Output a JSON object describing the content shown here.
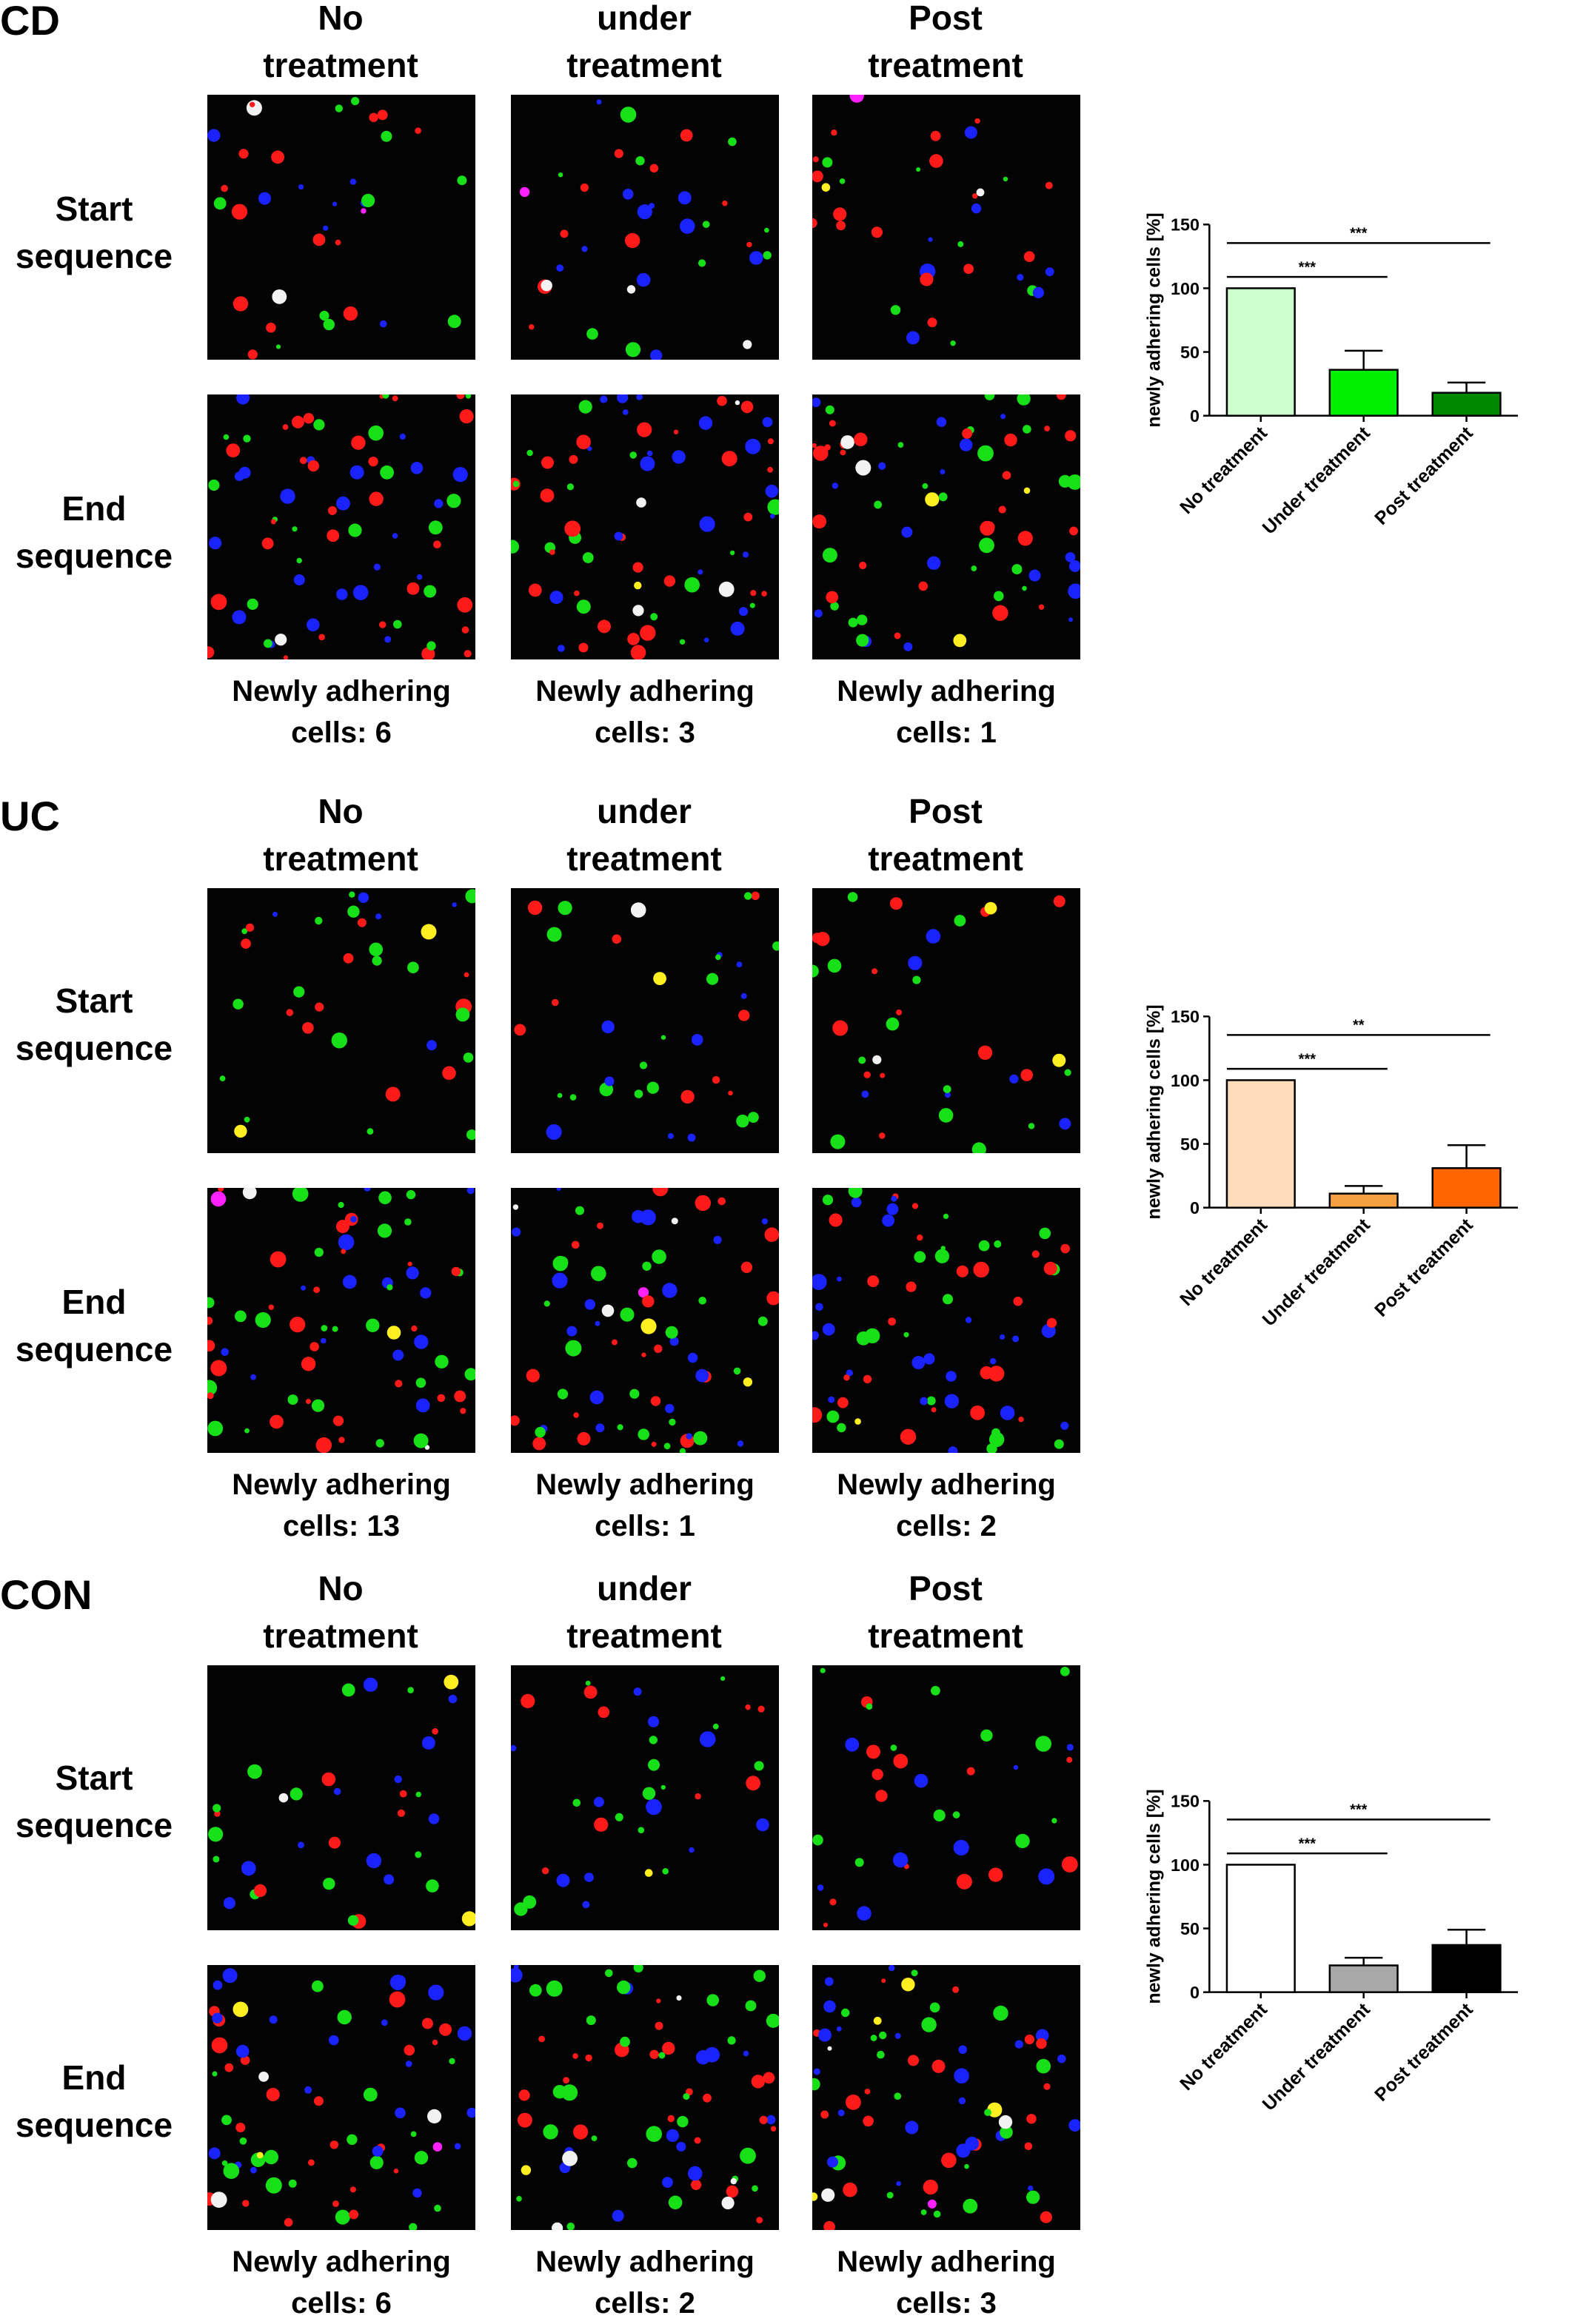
{
  "groups": [
    {
      "label": "CD",
      "columns": [
        "No\ntreatment",
        "under\ntreatment",
        "Post\ntreatment"
      ],
      "rows": [
        "Start\nsequence",
        "End\nsequence"
      ],
      "captions": [
        "Newly adhering\ncells: 6",
        "Newly adhering\ncells: 3",
        "Newly adhering\ncells: 1"
      ]
    },
    {
      "label": "UC",
      "columns": [
        "No\ntreatment",
        "under\ntreatment",
        "Post\ntreatment"
      ],
      "rows": [
        "Start\nsequence",
        "End\nsequence"
      ],
      "captions": [
        "Newly adhering\ncells: 13",
        "Newly adhering\ncells: 1",
        "Newly adhering\ncells: 2"
      ]
    },
    {
      "label": "CON",
      "columns": [
        "No\ntreatment",
        "under\ntreatment",
        "Post\ntreatment"
      ],
      "rows": [
        "Start\nsequence",
        "End\nsequence"
      ],
      "captions": [
        "Newly adhering\ncells: 6",
        "Newly adhering\ncells: 2",
        "Newly adhering\ncells: 3"
      ]
    }
  ],
  "chart_data": [
    {
      "type": "bar",
      "ylabel": "newly adhering cells [%]",
      "ylim": [
        0,
        150
      ],
      "yticks": [
        "0",
        "50",
        "100",
        "150"
      ],
      "categories": [
        "No treatment",
        "Under treatment",
        "Post treatment"
      ],
      "values": [
        100,
        36,
        18
      ],
      "errors": [
        0,
        15,
        8
      ],
      "colors": [
        "#ccffcc",
        "#00ee00",
        "#008800"
      ],
      "significance": [
        {
          "from": 0,
          "to": 1,
          "label": "***"
        },
        {
          "from": 0,
          "to": 2,
          "label": "***"
        }
      ]
    },
    {
      "type": "bar",
      "ylabel": "newly adhering cells [%]",
      "ylim": [
        0,
        150
      ],
      "yticks": [
        "0",
        "50",
        "100",
        "150"
      ],
      "categories": [
        "No treatment",
        "Under treatment",
        "Post treatment"
      ],
      "values": [
        100,
        11,
        31
      ],
      "errors": [
        0,
        6,
        18
      ],
      "colors": [
        "#ffddbb",
        "#f5a040",
        "#ff6600"
      ],
      "significance": [
        {
          "from": 0,
          "to": 1,
          "label": "***"
        },
        {
          "from": 0,
          "to": 2,
          "label": "**"
        }
      ]
    },
    {
      "type": "bar",
      "ylabel": "newly adhering cells [%]",
      "ylim": [
        0,
        150
      ],
      "yticks": [
        "0",
        "50",
        "100",
        "150"
      ],
      "categories": [
        "No treatment",
        "Under treatment",
        "Post treatment"
      ],
      "values": [
        100,
        21,
        37
      ],
      "errors": [
        0,
        6,
        12
      ],
      "colors": [
        "#ffffff",
        "#a8a8a8",
        "#000000"
      ],
      "significance": [
        {
          "from": 0,
          "to": 1,
          "label": "***"
        },
        {
          "from": 0,
          "to": 2,
          "label": "***"
        }
      ]
    }
  ]
}
